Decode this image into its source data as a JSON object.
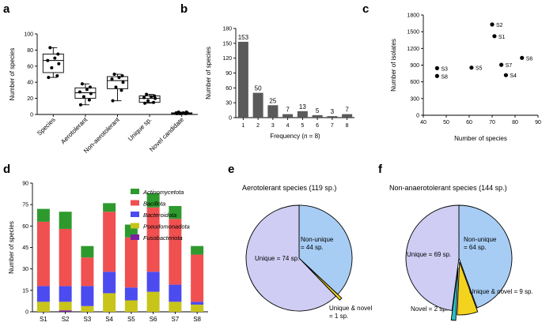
{
  "panel_letters": [
    "a",
    "b",
    "c",
    "d",
    "e",
    "f"
  ],
  "chart_data": [
    {
      "id": "a",
      "type": "box",
      "ylabel": "Number of species",
      "ylim": [
        0,
        100
      ],
      "yticks": [
        0,
        20,
        40,
        60,
        80,
        100
      ],
      "categories": [
        "Species",
        "Aerotolerant",
        "Non-aerotolerant",
        "Unique sp.",
        "Novel candidate"
      ],
      "boxes": [
        {
          "min": 46,
          "q1": 52,
          "median": 67,
          "q3": 75,
          "max": 83,
          "points": [
            46,
            48,
            58,
            63,
            67,
            70,
            75,
            83
          ]
        },
        {
          "min": 12,
          "q1": 20,
          "median": 27,
          "q3": 33,
          "max": 38,
          "points": [
            12,
            18,
            22,
            26,
            28,
            31,
            34,
            38
          ]
        },
        {
          "min": 17,
          "q1": 32,
          "median": 42,
          "q3": 47,
          "max": 50,
          "points": [
            17,
            30,
            34,
            40,
            44,
            46,
            48,
            50
          ]
        },
        {
          "min": 14,
          "q1": 15,
          "median": 20,
          "q3": 23,
          "max": 25,
          "points": [
            14,
            15,
            17,
            20,
            21,
            22,
            23,
            25
          ]
        },
        {
          "min": 1,
          "q1": 1,
          "median": 2,
          "q3": 2,
          "max": 3,
          "points": [
            1,
            1,
            1,
            2,
            2,
            2,
            3,
            3
          ]
        }
      ]
    },
    {
      "id": "b",
      "type": "bar",
      "ylabel": "Number of species",
      "xlabel_prefix": "Frequency (",
      "xlabel_var": "n",
      "xlabel_suffix": " = 8)",
      "ylim": [
        0,
        180
      ],
      "yticks": [
        0,
        30,
        60,
        90,
        120,
        150,
        180
      ],
      "categories": [
        "1",
        "2",
        "3",
        "4",
        "5",
        "6",
        "7",
        "8"
      ],
      "values": [
        153,
        50,
        25,
        7,
        13,
        5,
        3,
        7
      ]
    },
    {
      "id": "c",
      "type": "scatter",
      "xlabel": "Number of species",
      "ylabel": "Number of isolates",
      "xlim": [
        40,
        90
      ],
      "ylim": [
        0,
        1800
      ],
      "xticks": [
        40,
        50,
        60,
        70,
        80,
        90
      ],
      "yticks": [
        0,
        300,
        600,
        900,
        1200,
        1500,
        1800
      ],
      "points": [
        {
          "label": "S1",
          "x": 71,
          "y": 1420
        },
        {
          "label": "S2",
          "x": 70,
          "y": 1630
        },
        {
          "label": "S3",
          "x": 46,
          "y": 845
        },
        {
          "label": "S4",
          "x": 76,
          "y": 720
        },
        {
          "label": "S5",
          "x": 61,
          "y": 855
        },
        {
          "label": "S6",
          "x": 83,
          "y": 1030
        },
        {
          "label": "S7",
          "x": 74,
          "y": 905
        },
        {
          "label": "S8",
          "x": 46,
          "y": 705
        }
      ]
    },
    {
      "id": "d",
      "type": "stacked_bar",
      "ylabel": "Number of species",
      "ylim": [
        0,
        90
      ],
      "yticks": [
        0,
        15,
        30,
        45,
        60,
        75,
        90
      ],
      "categories": [
        "S1",
        "S2",
        "S3",
        "S4",
        "S5",
        "S6",
        "S7",
        "S8"
      ],
      "series": [
        {
          "name": "Fusobacteriota",
          "color": "#7b1fa2",
          "values": [
            0,
            1,
            0,
            0,
            0,
            0,
            0,
            0
          ]
        },
        {
          "name": "Pseudomonadota",
          "color": "#c8c41a",
          "values": [
            7,
            6,
            4,
            13,
            8,
            14,
            7,
            5
          ]
        },
        {
          "name": "Bacteroidota",
          "color": "#4b4bf0",
          "values": [
            11,
            11,
            14,
            15,
            9,
            14,
            12,
            2
          ]
        },
        {
          "name": "Bacillota",
          "color": "#f05050",
          "values": [
            45,
            40,
            20,
            42,
            35,
            45,
            46,
            33
          ]
        },
        {
          "name": "Actinomycetota",
          "color": "#2e9a2e",
          "values": [
            9,
            12,
            8,
            6,
            9,
            10,
            9,
            6
          ]
        }
      ],
      "legend_order": [
        "Actinomycetota",
        "Bacillota",
        "Bacteroidota",
        "Pseudomonadota",
        "Fusobacteriota"
      ]
    },
    {
      "id": "e",
      "type": "pie",
      "title": "Aerotolerant species (119 sp.)",
      "slices": [
        {
          "name": "Non-unique",
          "value": 44,
          "color": "#a7cdf5",
          "label_lines": [
            "Non-unique",
            "= 44 sp."
          ]
        },
        {
          "name": "Unique & novel",
          "value": 1,
          "color": "#f3d31e",
          "label_lines": [
            "Unique & novel",
            "= 1 sp."
          ]
        },
        {
          "name": "Unique",
          "value": 74,
          "color": "#cfcdf3",
          "label_lines": [
            "Unique = 74 sp."
          ]
        }
      ]
    },
    {
      "id": "f",
      "type": "pie",
      "title": "Non-anaerotolerant species (144 sp.)",
      "slices": [
        {
          "name": "Non-unique",
          "value": 64,
          "color": "#a7cdf5",
          "label_lines": [
            "Non-unique",
            "= 64 sp."
          ]
        },
        {
          "name": "Unique & novel",
          "value": 9,
          "color": "#f3d31e",
          "label_lines": [
            "Unique & novel = 9 sp."
          ]
        },
        {
          "name": "Novel",
          "value": 2,
          "color": "#2bbfc4",
          "label_lines": [
            "Novel = 2 sp."
          ]
        },
        {
          "name": "Unique",
          "value": 69,
          "color": "#cfcdf3",
          "label_lines": [
            "Unique = 69 sp."
          ]
        }
      ]
    }
  ]
}
